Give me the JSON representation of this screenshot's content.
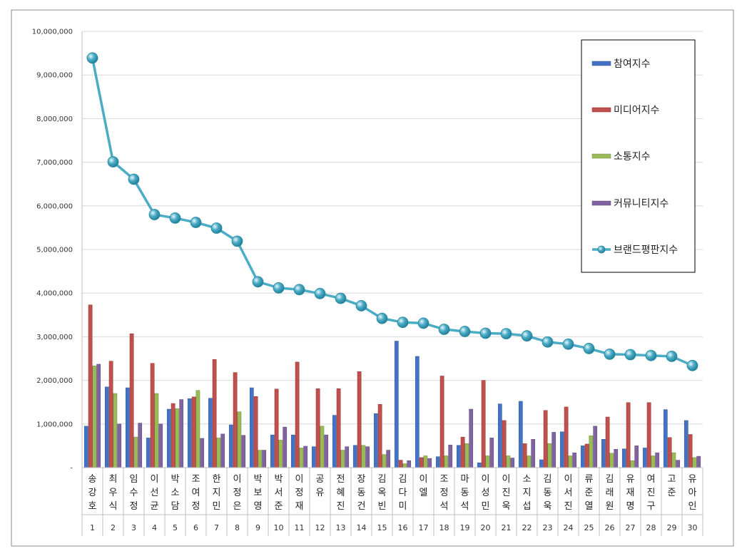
{
  "chart_data": {
    "type": "bar",
    "title": "",
    "xlabel": "",
    "ylabel": "",
    "ylim": [
      0,
      10000000
    ],
    "yticks": [
      0,
      1000000,
      2000000,
      3000000,
      4000000,
      5000000,
      6000000,
      7000000,
      8000000,
      9000000,
      10000000
    ],
    "ytick_labels": [
      "-",
      "1,000,000",
      "2,000,000",
      "3,000,000",
      "4,000,000",
      "5,000,000",
      "6,000,000",
      "7,000,000",
      "8,000,000",
      "9,000,000",
      "10,000,000"
    ],
    "grid": true,
    "legend_position": "top-right",
    "categories": [
      "송강호",
      "최우식",
      "임수정",
      "이선균",
      "박소담",
      "조여정",
      "한지민",
      "이정은",
      "박보영",
      "박서준",
      "이정재",
      "공유",
      "전혜진",
      "장동건",
      "김옥빈",
      "김다미",
      "이엘",
      "조정석",
      "마동석",
      "이성민",
      "이진욱",
      "소지섭",
      "김동욱",
      "이서진",
      "류준열",
      "김래원",
      "유재명",
      "여진구",
      "고준",
      "유아인"
    ],
    "ranks": [
      "1",
      "2",
      "3",
      "4",
      "5",
      "6",
      "7",
      "8",
      "9",
      "10",
      "11",
      "12",
      "13",
      "14",
      "15",
      "16",
      "17",
      "18",
      "19",
      "20",
      "21",
      "22",
      "23",
      "24",
      "25",
      "26",
      "27",
      "28",
      "29",
      "30"
    ],
    "series": [
      {
        "name": "참여지수",
        "type": "bar",
        "color": "#4472C4",
        "values": [
          950000,
          1850000,
          1830000,
          680000,
          1340000,
          1580000,
          1590000,
          980000,
          1830000,
          750000,
          750000,
          480000,
          1200000,
          510000,
          1240000,
          2900000,
          2550000,
          250000,
          510000,
          110000,
          1460000,
          1520000,
          180000,
          820000,
          500000,
          650000,
          430000,
          450000,
          1330000,
          1080000
        ]
      },
      {
        "name": "미디어지수",
        "type": "bar",
        "color": "#C0504D",
        "values": [
          3730000,
          2440000,
          3070000,
          2390000,
          1470000,
          1620000,
          2480000,
          2180000,
          1630000,
          1800000,
          2420000,
          1810000,
          1810000,
          2200000,
          1450000,
          170000,
          230000,
          2100000,
          700000,
          2000000,
          1080000,
          550000,
          1310000,
          1390000,
          540000,
          1160000,
          1490000,
          1490000,
          690000,
          760000
        ]
      },
      {
        "name": "소통지수",
        "type": "bar",
        "color": "#9BBB59",
        "values": [
          2330000,
          1700000,
          700000,
          1700000,
          1350000,
          1770000,
          680000,
          1280000,
          400000,
          630000,
          450000,
          950000,
          400000,
          510000,
          300000,
          90000,
          270000,
          270000,
          550000,
          270000,
          270000,
          270000,
          550000,
          270000,
          730000,
          330000,
          160000,
          270000,
          340000,
          230000
        ]
      },
      {
        "name": "커뮤니티지수",
        "type": "bar",
        "color": "#8064A2",
        "values": [
          2370000,
          1000000,
          1020000,
          1000000,
          1560000,
          670000,
          770000,
          740000,
          400000,
          930000,
          490000,
          750000,
          480000,
          480000,
          400000,
          160000,
          210000,
          520000,
          1340000,
          680000,
          220000,
          650000,
          810000,
          340000,
          950000,
          420000,
          500000,
          340000,
          170000,
          260000
        ]
      },
      {
        "name": "브랜드평판지수",
        "type": "line",
        "color": "#4BACC6",
        "values": [
          9390000,
          7010000,
          6610000,
          5800000,
          5720000,
          5620000,
          5490000,
          5190000,
          4260000,
          4120000,
          4080000,
          3990000,
          3880000,
          3710000,
          3420000,
          3330000,
          3310000,
          3170000,
          3120000,
          3080000,
          3070000,
          3020000,
          2880000,
          2830000,
          2730000,
          2600000,
          2590000,
          2570000,
          2550000,
          2340000
        ]
      }
    ]
  }
}
